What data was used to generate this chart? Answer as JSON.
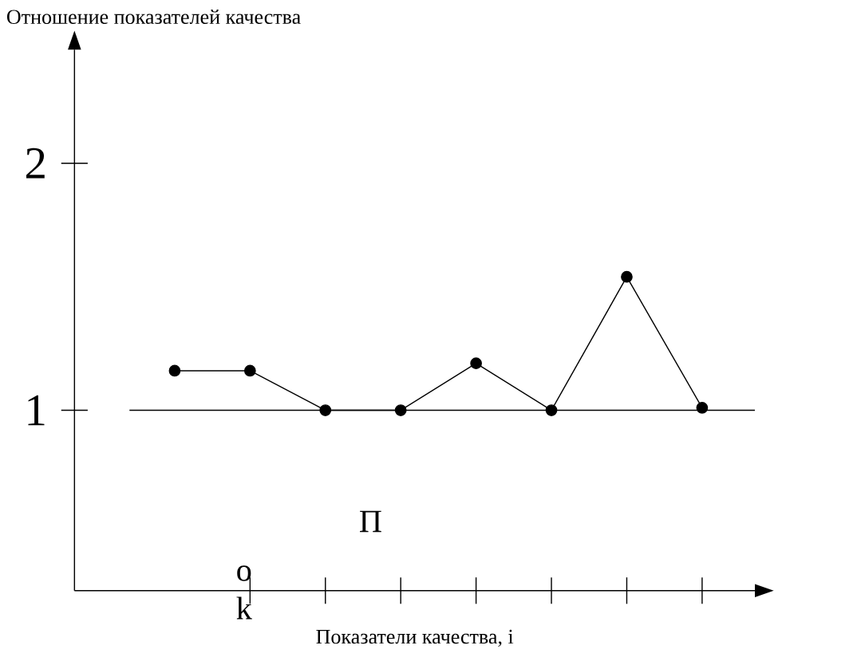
{
  "chart_data": {
    "type": "line",
    "xlabel": "Показатели качества, i",
    "ylabel": "Отношение показателей качества",
    "categories": [
      null,
      null,
      null,
      null,
      null,
      null,
      null,
      null
    ],
    "values": [
      1.16,
      1.16,
      1.0,
      1.0,
      1.19,
      1.0,
      1.54,
      1.01
    ],
    "color": "#000000",
    "marker": "circle",
    "line_style": "solid",
    "ylim": [
      0.27,
      2.46
    ],
    "yticks": [
      1,
      2
    ],
    "tick_labels": "y",
    "ref_lines": [
      {
        "axis": "y",
        "value": 1,
        "color": "#000000"
      }
    ],
    "annotations": [
      "П",
      "o",
      "k"
    ]
  }
}
